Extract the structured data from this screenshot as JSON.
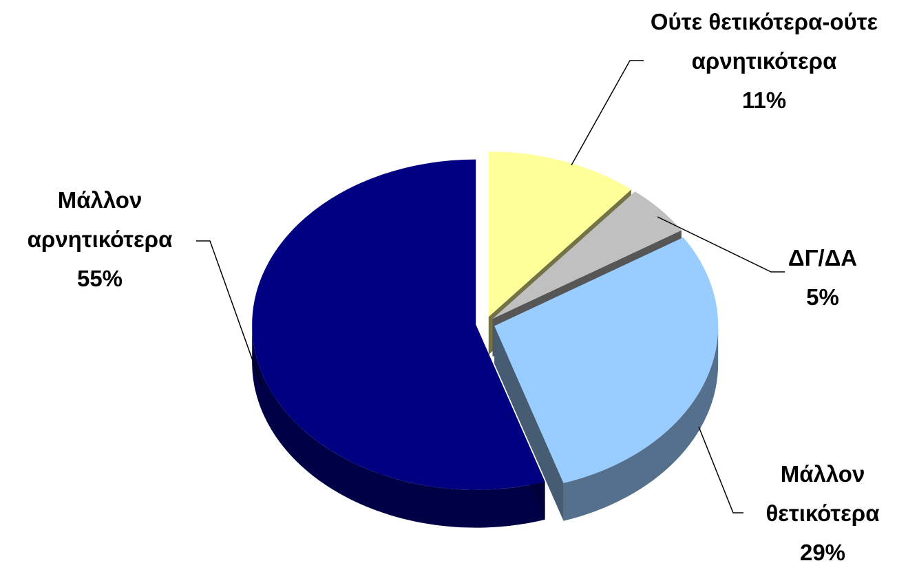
{
  "chart_data": {
    "type": "pie",
    "categories": [
      "Ούτε θετικότερα-ούτε αρνητικότερα",
      "ΔΓ/ΔΑ",
      "Μάλλον θετικότερα",
      "Μάλλον αρνητικότερα"
    ],
    "values": [
      11,
      5,
      29,
      55
    ],
    "value_labels": [
      "11%",
      "5%",
      "29%",
      "55%"
    ],
    "colors": [
      "#ffff99",
      "#c0c0c0",
      "#99ccff",
      "#000080"
    ]
  }
}
